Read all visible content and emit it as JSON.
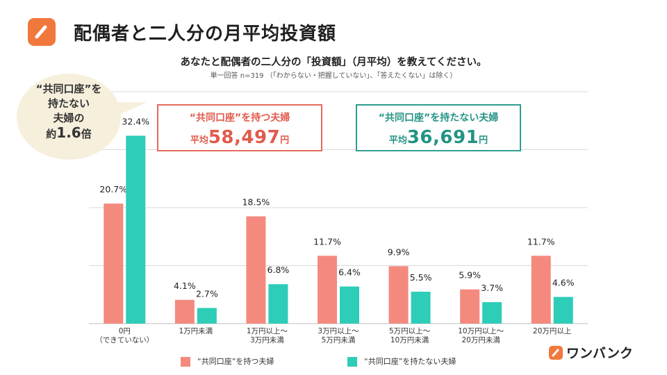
{
  "header": {
    "title": "配偶者と二人分の月平均投資額",
    "logo_icon": "pencil-icon"
  },
  "question": "あなたと配偶者の二人分の「投資額」（月平均）を教えてください。",
  "note": "単一回答 n=319 （「わからない・把握していない」、「答えたくない」は除く）",
  "callout": {
    "line1": "“共同口座”を",
    "line2": "持たない",
    "line3": "夫婦の",
    "line4_prefix": "約",
    "line4_value": "1.6",
    "line4_suffix": "倍"
  },
  "averages": {
    "joint": {
      "title": "“共同口座”を持つ夫婦",
      "prefix": "平均",
      "value": "58,497",
      "unit": "円"
    },
    "no_joint": {
      "title": "“共同口座”を持たない夫婦",
      "prefix": "平均",
      "value": "36,691",
      "unit": "円"
    }
  },
  "brand": {
    "name": "ワンバンク",
    "icon": "pencil-icon"
  },
  "colors": {
    "joint": "#f48a7e",
    "no_joint": "#2ecdb8",
    "grid": "#d9d9d9",
    "accent": "#f0783c"
  },
  "chart_data": {
    "type": "bar",
    "title": "あなたと配偶者の二人分の「投資額」（月平均）を教えてください。",
    "categories": [
      [
        "0円",
        "（できていない）"
      ],
      [
        "1万円未満"
      ],
      [
        "1万円以上～",
        "3万円未満"
      ],
      [
        "3万円以上～",
        "5万円未満"
      ],
      [
        "5万円以上～",
        "10万円未満"
      ],
      [
        "10万円以上～",
        "20万円未満"
      ],
      [
        "20万円以上"
      ]
    ],
    "series": [
      {
        "name": "“共同口座”を持つ夫婦",
        "values": [
          20.7,
          4.1,
          18.5,
          11.7,
          9.9,
          5.9,
          11.7
        ],
        "labels": [
          "20.7%",
          "4.1%",
          "18.5%",
          "11.7%",
          "9.9%",
          "5.9%",
          "11.7%"
        ]
      },
      {
        "name": "“共同口座”を持たない夫婦",
        "values": [
          32.4,
          2.7,
          6.8,
          6.4,
          5.5,
          3.7,
          4.6
        ],
        "labels": [
          "32.4%",
          "2.7%",
          "6.8%",
          "6.4%",
          "5.5%",
          "3.7%",
          "4.6%"
        ]
      }
    ],
    "ylim": [
      0,
      40
    ],
    "gridlines": [
      0,
      10,
      20,
      30,
      40
    ],
    "xlabel": "",
    "ylabel": "",
    "legend_position": "bottom"
  }
}
